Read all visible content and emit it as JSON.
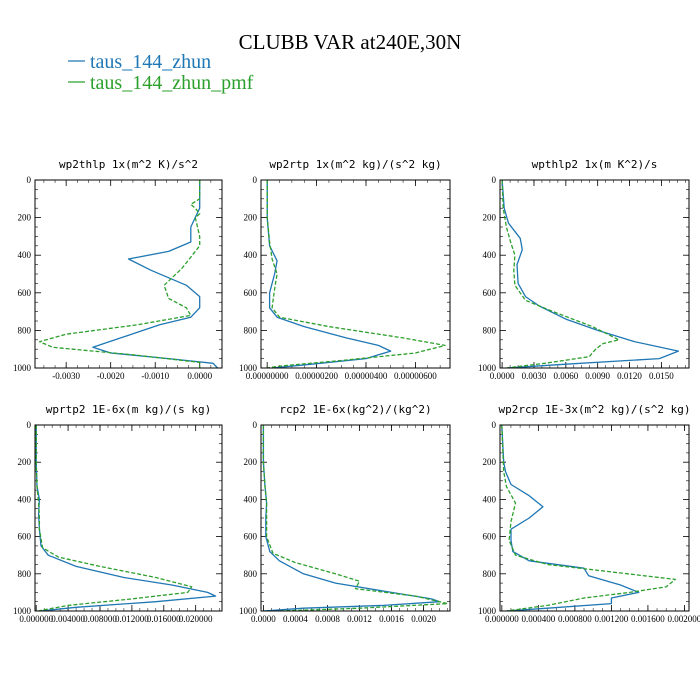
{
  "figure": {
    "title": "CLUBB VAR at240E,30N",
    "legend": [
      {
        "label": "taus_144_zhun",
        "color": "#1f77b4",
        "dash": "solid"
      },
      {
        "label": "taus_144_zhun_pmf",
        "color": "#2ca02c",
        "dash": "dashed"
      }
    ]
  },
  "chart_data": [
    {
      "type": "line",
      "title": "wp2thlp  1x(m^2 K)/s^2",
      "xlim": [
        -0.0037,
        0.0005
      ],
      "ylim": [
        1000,
        0
      ],
      "y_inverted": true,
      "xticks": [
        -0.003,
        -0.002,
        -0.001,
        0.0
      ],
      "xtick_labels": [
        "-0.0030",
        "-0.0020",
        "-0.0010",
        "0.0000"
      ],
      "yticks": [
        0,
        200,
        400,
        600,
        800,
        1000
      ],
      "series": [
        {
          "name": "taus_144_zhun",
          "points": [
            [
              0.0,
              0
            ],
            [
              0.0,
              100
            ],
            [
              0.0,
              150
            ],
            [
              -0.0002,
              250
            ],
            [
              -0.0002,
              330
            ],
            [
              -0.0007,
              380
            ],
            [
              -0.0016,
              420
            ],
            [
              -0.0011,
              480
            ],
            [
              -0.0003,
              560
            ],
            [
              0.0,
              620
            ],
            [
              0.0,
              680
            ],
            [
              -0.0002,
              730
            ],
            [
              -0.0009,
              770
            ],
            [
              -0.0014,
              810
            ],
            [
              -0.0019,
              850
            ],
            [
              -0.0024,
              890
            ],
            [
              -0.002,
              920
            ],
            [
              -0.0007,
              950
            ],
            [
              0.0003,
              975
            ],
            [
              0.0004,
              1000
            ]
          ]
        },
        {
          "name": "taus_144_zhun_pmf",
          "points": [
            [
              0.0,
              0
            ],
            [
              0.0,
              100
            ],
            [
              -0.0002,
              130
            ],
            [
              -0.0001,
              150
            ],
            [
              0.0,
              180
            ],
            [
              -0.0001,
              200
            ],
            [
              0.0,
              300
            ],
            [
              0.0,
              350
            ],
            [
              -0.0004,
              470
            ],
            [
              -0.0008,
              560
            ],
            [
              -0.0007,
              630
            ],
            [
              -0.0003,
              680
            ],
            [
              -0.0002,
              720
            ],
            [
              -0.0014,
              770
            ],
            [
              -0.003,
              820
            ],
            [
              -0.0036,
              860
            ],
            [
              -0.0033,
              890
            ],
            [
              -0.0015,
              930
            ],
            [
              0.0,
              970
            ],
            [
              0.0,
              1000
            ]
          ]
        }
      ]
    },
    {
      "type": "line",
      "title": "wp2rtp  1x(m^2 kg)/(s^2 kg)",
      "xlim": [
        -2.5e-07,
        7.4e-06
      ],
      "ylim": [
        1000,
        0
      ],
      "y_inverted": true,
      "xticks": [
        0.0,
        2e-06,
        4e-06,
        6e-06
      ],
      "xtick_labels": [
        "0.00000000",
        "0.00000200",
        "0.00000400",
        "0.00000600"
      ],
      "yticks": [
        0,
        200,
        400,
        600,
        800,
        1000
      ],
      "series": [
        {
          "name": "taus_144_zhun",
          "points": [
            [
              0.0,
              0
            ],
            [
              0.0,
              200
            ],
            [
              1e-07,
              350
            ],
            [
              4e-07,
              430
            ],
            [
              3e-07,
              500
            ],
            [
              1e-07,
              600
            ],
            [
              1e-07,
              680
            ],
            [
              4e-07,
              730
            ],
            [
              1.5e-06,
              780
            ],
            [
              3.2e-06,
              840
            ],
            [
              4.5e-06,
              880
            ],
            [
              5e-06,
              910
            ],
            [
              4e-06,
              950
            ],
            [
              1.8e-06,
              980
            ],
            [
              2e-07,
              1000
            ]
          ]
        },
        {
          "name": "taus_144_zhun_pmf",
          "points": [
            [
              0.0,
              0
            ],
            [
              0.0,
              200
            ],
            [
              1e-07,
              330
            ],
            [
              2e-07,
              420
            ],
            [
              4e-07,
              500
            ],
            [
              3e-07,
              580
            ],
            [
              2e-07,
              680
            ],
            [
              5e-07,
              730
            ],
            [
              2.5e-06,
              780
            ],
            [
              5.5e-06,
              840
            ],
            [
              7.2e-06,
              880
            ],
            [
              6e-06,
              920
            ],
            [
              3e-06,
              960
            ],
            [
              5e-07,
              990
            ],
            [
              0.0,
              1000
            ]
          ]
        }
      ]
    },
    {
      "type": "line",
      "title": "wpthlp2  1x(m K^2)/s",
      "xlim": [
        -0.0002,
        0.0176
      ],
      "ylim": [
        1000,
        0
      ],
      "y_inverted": true,
      "xticks": [
        0.0,
        0.003,
        0.006,
        0.009,
        0.012,
        0.015
      ],
      "xtick_labels": [
        "0.0000",
        "0.0030",
        "0.0060",
        "0.0090",
        "0.0120",
        "0.0150"
      ],
      "yticks": [
        0,
        200,
        400,
        600,
        800,
        1000
      ],
      "series": [
        {
          "name": "taus_144_zhun",
          "points": [
            [
              0.0,
              0
            ],
            [
              0.0002,
              150
            ],
            [
              0.0006,
              230
            ],
            [
              0.0017,
              310
            ],
            [
              0.0019,
              370
            ],
            [
              0.0014,
              450
            ],
            [
              0.0015,
              550
            ],
            [
              0.0022,
              620
            ],
            [
              0.0035,
              670
            ],
            [
              0.006,
              740
            ],
            [
              0.009,
              800
            ],
            [
              0.0125,
              860
            ],
            [
              0.0166,
              910
            ],
            [
              0.0148,
              950
            ],
            [
              0.006,
              980
            ],
            [
              0.0005,
              1000
            ]
          ]
        },
        {
          "name": "taus_144_zhun_pmf",
          "points": [
            [
              0.0,
              0
            ],
            [
              0.0001,
              150
            ],
            [
              0.0004,
              250
            ],
            [
              0.0008,
              330
            ],
            [
              0.0012,
              400
            ],
            [
              0.0011,
              480
            ],
            [
              0.0012,
              560
            ],
            [
              0.0022,
              640
            ],
            [
              0.0048,
              700
            ],
            [
              0.0085,
              780
            ],
            [
              0.011,
              850
            ],
            [
              0.0095,
              870
            ],
            [
              0.0088,
              900
            ],
            [
              0.0082,
              940
            ],
            [
              0.004,
              975
            ],
            [
              0.0004,
              1000
            ]
          ]
        }
      ]
    },
    {
      "type": "line",
      "title": "wprtp2  1E-6x(m kg)/(s kg)",
      "xlim": [
        -0.00015,
        0.0233
      ],
      "ylim": [
        1000,
        0
      ],
      "y_inverted": true,
      "xticks": [
        0.0,
        0.004,
        0.008,
        0.012,
        0.016,
        0.02
      ],
      "xtick_labels": [
        "0.000000",
        "0.004000",
        "0.008000",
        "0.012000",
        "0.016000",
        "0.020000"
      ],
      "yticks": [
        0,
        200,
        400,
        600,
        800,
        1000
      ],
      "series": [
        {
          "name": "taus_144_zhun",
          "points": [
            [
              0.0,
              0
            ],
            [
              0.0,
              200
            ],
            [
              0.0001,
              330
            ],
            [
              0.0004,
              400
            ],
            [
              0.0003,
              480
            ],
            [
              0.0004,
              560
            ],
            [
              0.0006,
              650
            ],
            [
              0.0015,
              700
            ],
            [
              0.005,
              760
            ],
            [
              0.011,
              820
            ],
            [
              0.017,
              860
            ],
            [
              0.0215,
              900
            ],
            [
              0.0225,
              920
            ],
            [
              0.015,
              950
            ],
            [
              0.005,
              980
            ],
            [
              0.0005,
              1000
            ]
          ]
        },
        {
          "name": "taus_144_zhun_pmf",
          "points": [
            [
              0.0,
              0
            ],
            [
              0.0,
              200
            ],
            [
              0.0001,
              330
            ],
            [
              0.0003,
              420
            ],
            [
              0.0004,
              500
            ],
            [
              0.0004,
              560
            ],
            [
              0.0008,
              660
            ],
            [
              0.0028,
              710
            ],
            [
              0.008,
              760
            ],
            [
              0.015,
              820
            ],
            [
              0.0195,
              870
            ],
            [
              0.019,
              900
            ],
            [
              0.012,
              935
            ],
            [
              0.004,
              970
            ],
            [
              0.0002,
              1000
            ]
          ]
        }
      ]
    },
    {
      "type": "line",
      "title": "rcp2  1E-6x(kg^2)/(kg^2)",
      "xlim": [
        -3e-05,
        0.00233
      ],
      "ylim": [
        1000,
        0
      ],
      "y_inverted": true,
      "xticks": [
        0.0,
        0.0004,
        0.0008,
        0.0012,
        0.0016,
        0.002
      ],
      "xtick_labels": [
        "0.0000",
        "0.0004",
        "0.0008",
        "0.0012",
        "0.0016",
        "0.0020"
      ],
      "yticks": [
        0,
        200,
        400,
        600,
        800,
        1000
      ],
      "series": [
        {
          "name": "taus_144_zhun",
          "points": [
            [
              0.0,
              0
            ],
            [
              0.0,
              200
            ],
            [
              2e-05,
              330
            ],
            [
              4e-05,
              420
            ],
            [
              3e-05,
              500
            ],
            [
              3e-05,
              600
            ],
            [
              8e-05,
              680
            ],
            [
              0.0002,
              730
            ],
            [
              0.0005,
              800
            ],
            [
              0.0009,
              850
            ],
            [
              0.0016,
              900
            ],
            [
              0.0021,
              935
            ],
            [
              0.0022,
              950
            ],
            [
              0.0015,
              970
            ],
            [
              0.0005,
              985
            ],
            [
              0.0,
              1000
            ]
          ]
        },
        {
          "name": "taus_144_zhun_pmf",
          "points": [
            [
              0.0,
              0
            ],
            [
              0.0,
              200
            ],
            [
              2e-05,
              330
            ],
            [
              4e-05,
              420
            ],
            [
              4e-05,
              500
            ],
            [
              4e-05,
              600
            ],
            [
              0.00012,
              690
            ],
            [
              0.0004,
              740
            ],
            [
              0.0009,
              800
            ],
            [
              0.0012,
              840
            ],
            [
              0.00115,
              880
            ],
            [
              0.0019,
              920
            ],
            [
              0.0023,
              960
            ],
            [
              0.0012,
              985
            ],
            [
              0.0002,
              1000
            ]
          ]
        }
      ]
    },
    {
      "type": "line",
      "title": "wp2rcp  1E-3x(m^2 kg)/(s^2 kg)",
      "xlim": [
        -2e-05,
        0.00205
      ],
      "ylim": [
        1000,
        0
      ],
      "y_inverted": true,
      "xticks": [
        0.0,
        0.0004,
        0.0008,
        0.0012,
        0.0016,
        0.002
      ],
      "xtick_labels": [
        "0.000000",
        "0.000400",
        "0.000800",
        "0.001200",
        "0.001600",
        "0.002000"
      ],
      "yticks": [
        0,
        200,
        400,
        600,
        800,
        1000
      ],
      "series": [
        {
          "name": "taus_144_zhun",
          "points": [
            [
              0.0,
              0
            ],
            [
              2e-05,
              200
            ],
            [
              4e-05,
              250
            ],
            [
              0.0001,
              320
            ],
            [
              0.0003,
              380
            ],
            [
              0.00045,
              440
            ],
            [
              0.0003,
              500
            ],
            [
              0.0001,
              560
            ],
            [
              0.0001,
              620
            ],
            [
              0.00012,
              680
            ],
            [
              0.0003,
              730
            ],
            [
              0.0009,
              770
            ],
            [
              0.00095,
              810
            ],
            [
              0.0013,
              860
            ],
            [
              0.0015,
              900
            ],
            [
              0.0012,
              930
            ],
            [
              0.0012,
              960
            ],
            [
              0.0005,
              985
            ],
            [
              5e-05,
              1000
            ]
          ]
        },
        {
          "name": "taus_144_zhun_pmf",
          "points": [
            [
              0.0,
              0
            ],
            [
              2e-05,
              250
            ],
            [
              5e-05,
              330
            ],
            [
              0.00015,
              420
            ],
            [
              0.0001,
              520
            ],
            [
              8e-05,
              620
            ],
            [
              0.00015,
              700
            ],
            [
              0.0005,
              750
            ],
            [
              0.0012,
              790
            ],
            [
              0.0019,
              830
            ],
            [
              0.0018,
              870
            ],
            [
              0.0014,
              900
            ],
            [
              0.0009,
              930
            ],
            [
              0.0005,
              970
            ],
            [
              5e-05,
              1000
            ]
          ]
        }
      ]
    }
  ]
}
